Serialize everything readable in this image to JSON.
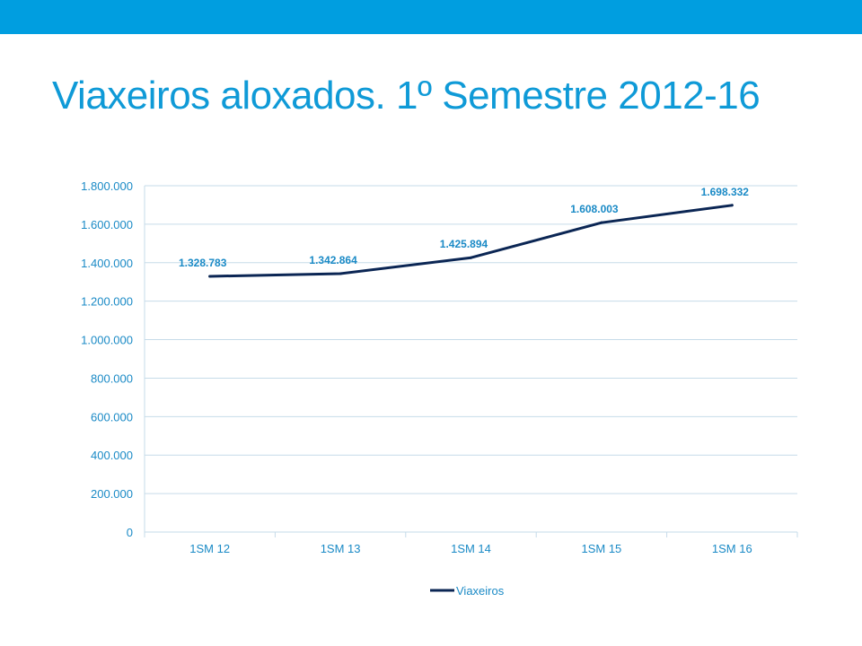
{
  "title": "Viaxeiros aloxados. 1º Semestre 2012-16",
  "colors": {
    "top_bar": "#009ee0",
    "title": "#0f9ad7",
    "grid": "#c6dbe9",
    "line": "#0b2654",
    "label": "#1a8ac6"
  },
  "chart_data": {
    "type": "line",
    "categories": [
      "1SM 12",
      "1SM 13",
      "1SM 14",
      "1SM 15",
      "1SM 16"
    ],
    "series": [
      {
        "name": "Viaxeiros",
        "values": [
          1328783,
          1342864,
          1425894,
          1608003,
          1698332
        ],
        "data_labels": [
          "1.328.783",
          "1.342.864",
          "1.425.894",
          "1.608.003",
          "1.698.332"
        ]
      }
    ],
    "ylim": [
      0,
      1800000
    ],
    "yticks": [
      0,
      200000,
      400000,
      600000,
      800000,
      1000000,
      1200000,
      1400000,
      1600000,
      1800000
    ],
    "ytick_labels": [
      "0",
      "200.000",
      "400.000",
      "600.000",
      "800.000",
      "1.000.000",
      "1.200.000",
      "1.400.000",
      "1.600.000",
      "1.800.000"
    ],
    "grid": true,
    "legend": "bottom",
    "xlabel": "",
    "ylabel": ""
  }
}
